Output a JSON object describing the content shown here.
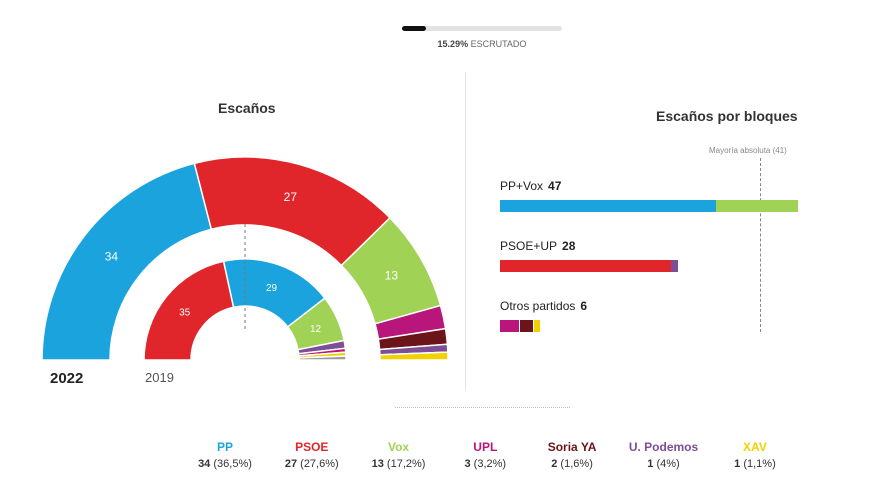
{
  "progress": {
    "percent_text": "15.29%",
    "label": "ESCRUTADO",
    "fraction": 0.1529
  },
  "seats_title": "Escaños",
  "blocks_title": "Escaños por bloques",
  "years": {
    "current": "2022",
    "previous": "2019"
  },
  "colors": {
    "PP": "#1ba3dd",
    "PSOE": "#e0252b",
    "Vox": "#a0d256",
    "UPL": "#b8167a",
    "Soria YA": "#6b1419",
    "U. Podemos": "#7d4e96",
    "XAV": "#f2d100",
    "Otros": "#999999"
  },
  "chart_data": {
    "type": "parliament",
    "total_seats": 81,
    "majority": 41,
    "majority_label": "Mayoría absoluta (41)",
    "results_2022": [
      {
        "party": "PP",
        "seats": 34,
        "pct": "36,5%"
      },
      {
        "party": "PSOE",
        "seats": 27,
        "pct": "27,6%"
      },
      {
        "party": "Vox",
        "seats": 13,
        "pct": "17,2%"
      },
      {
        "party": "UPL",
        "seats": 3,
        "pct": "3,2%"
      },
      {
        "party": "Soria YA",
        "seats": 2,
        "pct": "1,6%"
      },
      {
        "party": "U. Podemos",
        "seats": 1,
        "pct": "4%"
      },
      {
        "party": "XAV",
        "seats": 1,
        "pct": "1,1%"
      }
    ],
    "results_2019": [
      {
        "party": "PSOE",
        "seats": 35
      },
      {
        "party": "PP",
        "seats": 29
      },
      {
        "party": "Vox",
        "seats": 12
      },
      {
        "party": "U. Podemos",
        "seats": 2
      },
      {
        "party": "UPL",
        "seats": 1
      },
      {
        "party": "XAV",
        "seats": 1
      },
      {
        "party": "Otros",
        "seats": 1
      }
    ],
    "blocks": [
      {
        "label": "PP+Vox",
        "total": 47,
        "parts": [
          {
            "party": "PP",
            "seats": 34
          },
          {
            "party": "Vox",
            "seats": 13
          }
        ]
      },
      {
        "label": "PSOE+UP",
        "total": 28,
        "parts": [
          {
            "party": "PSOE",
            "seats": 27
          },
          {
            "party": "U. Podemos",
            "seats": 1
          }
        ]
      },
      {
        "label": "Otros partidos",
        "total": 6,
        "parts": [
          {
            "party": "UPL",
            "seats": 3
          },
          {
            "party": "Soria YA",
            "seats": 2
          },
          {
            "party": "XAV",
            "seats": 1
          }
        ]
      }
    ]
  }
}
